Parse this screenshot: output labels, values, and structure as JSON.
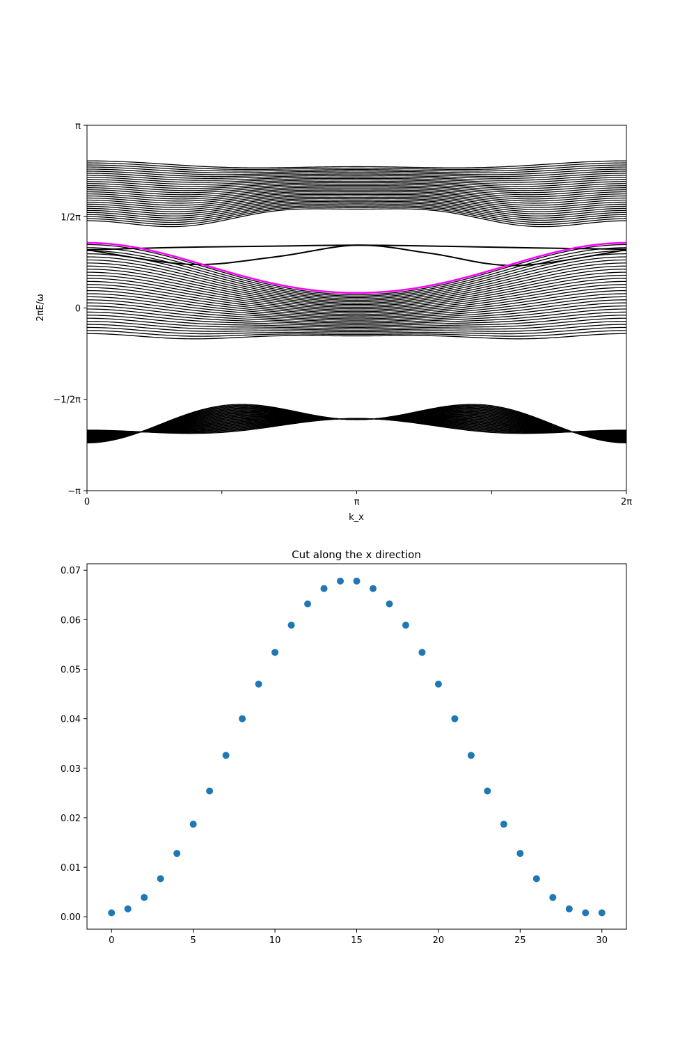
{
  "chart_data": [
    {
      "type": "line",
      "title": "",
      "xlabel": "k_x",
      "ylabel": "2πE/ω",
      "xlim": [
        0,
        6.283185
      ],
      "ylim": [
        -3.141593,
        3.141593
      ],
      "xticks": [
        {
          "value": 0,
          "label": "0"
        },
        {
          "value": 1.570796,
          "label": ""
        },
        {
          "value": 3.141593,
          "label": "π"
        },
        {
          "value": 4.712389,
          "label": ""
        },
        {
          "value": 6.283185,
          "label": "2π"
        }
      ],
      "yticks": [
        {
          "value": -3.141593,
          "label": "−π"
        },
        {
          "value": -1.570796,
          "label": "−1/2π"
        },
        {
          "value": 0,
          "label": "0"
        },
        {
          "value": 1.570796,
          "label": "1/2π"
        },
        {
          "value": 3.141593,
          "label": "π"
        }
      ],
      "bands": [
        {
          "name_visible": false,
          "color": "#000000",
          "count": 30,
          "top": {
            "offset": 2.45,
            "amp": [
              0.05,
              0.03,
              0.0
            ]
          },
          "bottom": {
            "offset": 1.55,
            "amp": [
              -0.15,
              0.05,
              0.05
            ]
          }
        },
        {
          "name_visible": false,
          "color": "#000000",
          "count": 30,
          "top": {
            "offset": 0.64,
            "amp": [
              0.43,
              0.02,
              0.0
            ]
          },
          "bottom": {
            "offset": -0.49,
            "amp": [
              0.0,
              0.03,
              0.02
            ]
          }
        },
        {
          "name_visible": false,
          "color": "#000000",
          "count": 30,
          "top": {
            "offset": -1.9,
            "amp": [
              -0.2,
              -0.22,
              0.0
            ]
          },
          "bottom": {
            "offset": -2.07,
            "amp": [
              -0.1,
              0.07,
              0.0
            ]
          }
        }
      ],
      "edge_states": [
        {
          "color": "#000000",
          "points": [
            [
              0,
              1.0
            ],
            [
              1.0,
              1.04
            ],
            [
              2.0,
              1.06
            ],
            [
              3.141593,
              1.08
            ],
            [
              4.2,
              1.06
            ],
            [
              5.3,
              1.03
            ],
            [
              6.283185,
              1.01
            ]
          ]
        },
        {
          "color": "#000000",
          "points": [
            [
              0,
              1.0
            ],
            [
              1.2,
              0.75
            ],
            [
              2.2,
              0.88
            ],
            [
              3.141593,
              1.08
            ],
            [
              4.0,
              0.94
            ],
            [
              5.0,
              0.73
            ],
            [
              6.283185,
              1.0
            ]
          ]
        }
      ],
      "highlight": {
        "color": "#ff00ff",
        "offset": 0.64,
        "amp": [
          0.43,
          0.02,
          0.0
        ],
        "shift": 0.03
      }
    },
    {
      "type": "scatter",
      "title": "Cut along the x direction",
      "xlabel": "",
      "ylabel": "",
      "xlim": [
        -1.5,
        31.5
      ],
      "ylim": [
        -0.0025,
        0.0713
      ],
      "xticks": [
        0,
        5,
        10,
        15,
        20,
        25,
        30
      ],
      "yticks": [
        "0.00",
        "0.01",
        "0.02",
        "0.03",
        "0.04",
        "0.05",
        "0.06",
        "0.07"
      ],
      "marker_color": "#1f77b4",
      "x": [
        0,
        1,
        2,
        3,
        4,
        5,
        6,
        7,
        8,
        9,
        10,
        11,
        12,
        13,
        14,
        15,
        16,
        17,
        18,
        19,
        20,
        21,
        22,
        23,
        24,
        25,
        26,
        27,
        28,
        29,
        30
      ],
      "y": [
        0.0008,
        0.0016,
        0.0039,
        0.0077,
        0.0128,
        0.0187,
        0.0254,
        0.0326,
        0.04,
        0.047,
        0.0534,
        0.0589,
        0.0632,
        0.0663,
        0.0678,
        0.0678,
        0.0663,
        0.0632,
        0.0589,
        0.0534,
        0.047,
        0.04,
        0.0326,
        0.0254,
        0.0187,
        0.0128,
        0.0077,
        0.0039,
        0.0016,
        0.0008,
        0.0008
      ]
    }
  ]
}
